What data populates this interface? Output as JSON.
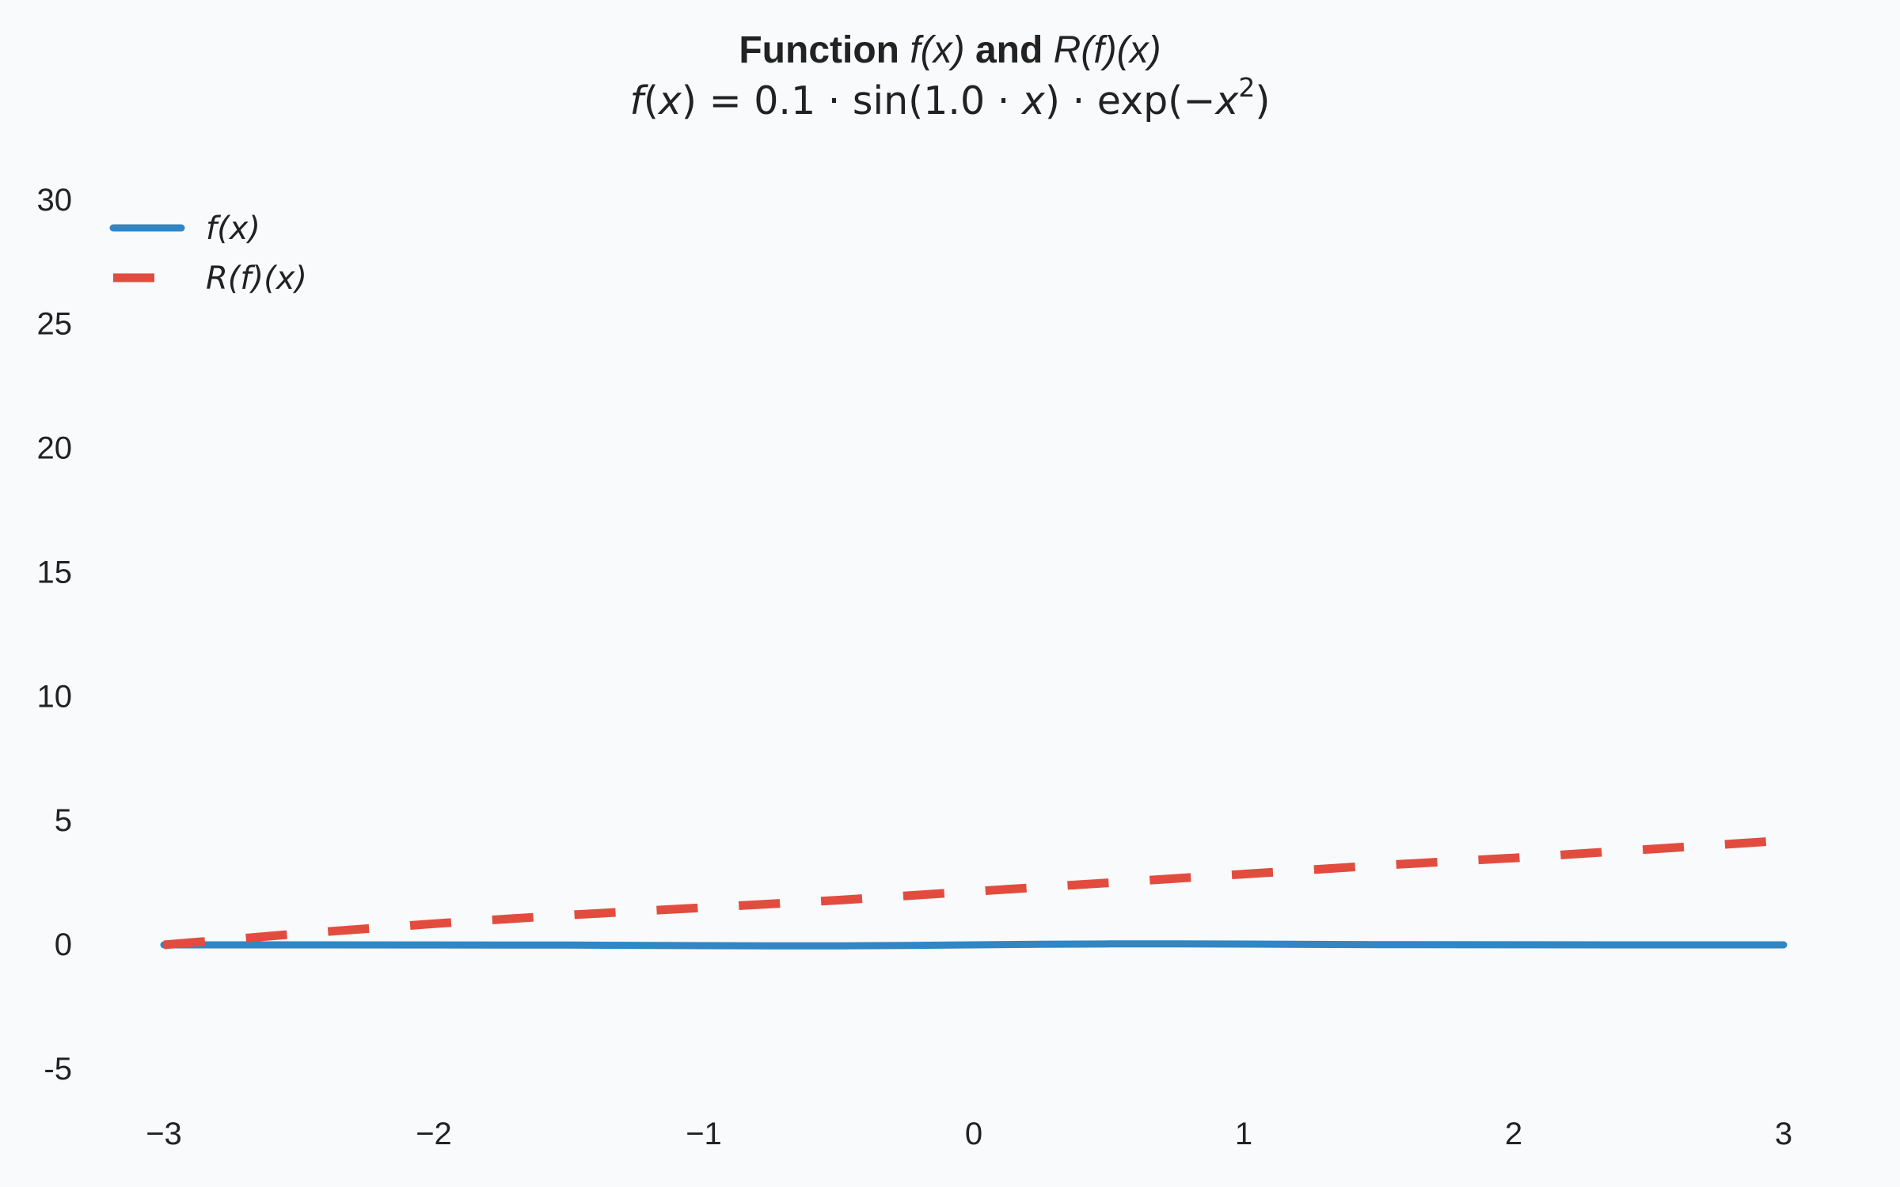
{
  "chart_data": {
    "type": "line",
    "title": {
      "bold_prefix": "Function",
      "f_symbol": "f",
      "x_symbol": "x",
      "joiner": "and",
      "r_symbol": "R"
    },
    "subtitle": {
      "lhs_f": "f",
      "x_symbol": "x",
      "equals": "=",
      "amplitude": "0.1",
      "dot": "·",
      "sin_name": "sin",
      "frequency": "1.0",
      "exp_name": "exp",
      "minus": "−",
      "exponent": "2"
    },
    "xlabel": "",
    "ylabel": "",
    "xlim": [
      -3,
      3
    ],
    "ylim": [
      -8,
      32
    ],
    "x_ticks": [
      -3,
      -2,
      -1,
      0,
      1,
      2,
      3
    ],
    "x_tick_labels": [
      "−3",
      "−2",
      "−1",
      "0",
      "1",
      "2",
      "3"
    ],
    "y_ticks": [
      -5,
      0,
      5,
      10,
      15,
      20,
      25,
      30
    ],
    "y_tick_labels": [
      "-5",
      "0",
      "5",
      "10",
      "15",
      "20",
      "25",
      "30"
    ],
    "grid": false,
    "legend_position": "top-left",
    "series": [
      {
        "key": "f",
        "legend_label": "f(x)",
        "color": "#3186c3",
        "style": "solid",
        "x": [
          -3,
          -2.5,
          -2,
          -1.5,
          -1,
          -0.75,
          -0.5,
          -0.25,
          0,
          0.25,
          0.5,
          0.75,
          1,
          1.5,
          2,
          2.5,
          3
        ],
        "y": [
          0.0,
          0.0,
          -0.002,
          -0.01,
          -0.031,
          -0.039,
          -0.037,
          -0.023,
          0.0,
          0.023,
          0.037,
          0.039,
          0.031,
          0.01,
          0.002,
          0.0,
          0.0
        ]
      },
      {
        "key": "R",
        "legend_label": "R(f)(x)",
        "color": "#e24c3f",
        "style": "dashed",
        "x": [
          -3,
          -2.5,
          -2,
          -1.5,
          -1,
          -0.5,
          0,
          0.5,
          1,
          1.5,
          2,
          2.5,
          3
        ],
        "y": [
          0.0,
          0.45,
          0.85,
          1.2,
          1.5,
          1.8,
          2.15,
          2.5,
          2.85,
          3.2,
          3.5,
          3.85,
          4.2
        ]
      }
    ]
  }
}
